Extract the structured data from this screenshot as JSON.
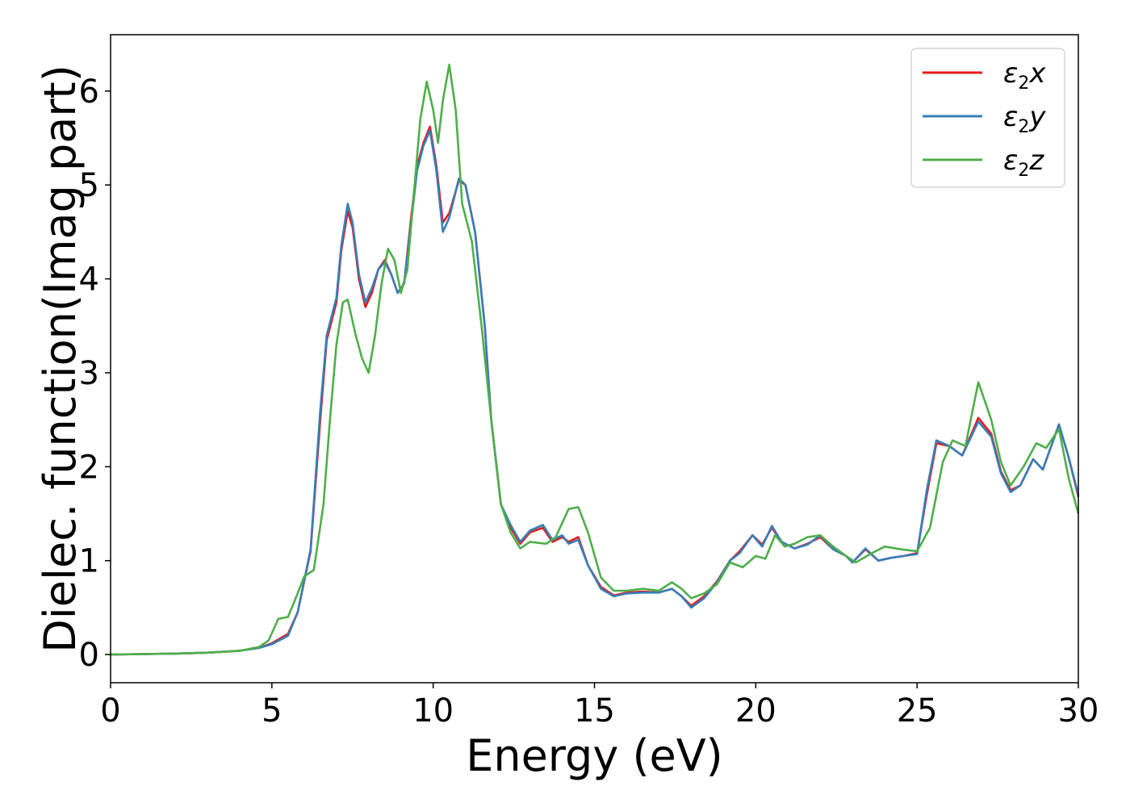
{
  "chart_data": {
    "type": "line",
    "title": "",
    "xlabel": "Energy (eV)",
    "ylabel": "Dielec. function(Imag part)",
    "xlim": [
      0,
      30
    ],
    "ylim": [
      -0.3,
      6.6
    ],
    "xticks": [
      0,
      5,
      10,
      15,
      20,
      25,
      30
    ],
    "yticks": [
      0,
      1,
      2,
      3,
      4,
      5,
      6
    ],
    "grid": false,
    "legend_position": "top-right",
    "series": [
      {
        "name": "ε2x",
        "legend_base": "ε",
        "legend_sub": "2",
        "legend_suffix": "x",
        "color": "#e41a1c",
        "points": [
          [
            0,
            0
          ],
          [
            1,
            0.005
          ],
          [
            2,
            0.01
          ],
          [
            3,
            0.02
          ],
          [
            4,
            0.04
          ],
          [
            4.6,
            0.07
          ],
          [
            5,
            0.12
          ],
          [
            5.5,
            0.22
          ],
          [
            5.8,
            0.45
          ],
          [
            6.2,
            1.1
          ],
          [
            6.5,
            2.5
          ],
          [
            6.7,
            3.35
          ],
          [
            7,
            3.75
          ],
          [
            7.15,
            4.3
          ],
          [
            7.35,
            4.72
          ],
          [
            7.5,
            4.55
          ],
          [
            7.7,
            4.0
          ],
          [
            7.9,
            3.7
          ],
          [
            8.1,
            3.85
          ],
          [
            8.3,
            4.1
          ],
          [
            8.5,
            4.2
          ],
          [
            8.7,
            4.05
          ],
          [
            8.9,
            3.85
          ],
          [
            9.1,
            3.95
          ],
          [
            9.3,
            4.6
          ],
          [
            9.5,
            5.2
          ],
          [
            9.7,
            5.45
          ],
          [
            9.9,
            5.62
          ],
          [
            10.1,
            5.2
          ],
          [
            10.3,
            4.6
          ],
          [
            10.5,
            4.7
          ],
          [
            10.8,
            5.05
          ],
          [
            11,
            5.0
          ],
          [
            11.3,
            4.5
          ],
          [
            11.6,
            3.5
          ],
          [
            11.8,
            2.5
          ],
          [
            12.1,
            1.6
          ],
          [
            12.4,
            1.35
          ],
          [
            12.7,
            1.18
          ],
          [
            13,
            1.3
          ],
          [
            13.4,
            1.35
          ],
          [
            13.7,
            1.2
          ],
          [
            14,
            1.25
          ],
          [
            14.2,
            1.2
          ],
          [
            14.5,
            1.25
          ],
          [
            14.8,
            0.95
          ],
          [
            15.2,
            0.72
          ],
          [
            15.6,
            0.63
          ],
          [
            16,
            0.66
          ],
          [
            16.5,
            0.67
          ],
          [
            17,
            0.66
          ],
          [
            17.4,
            0.7
          ],
          [
            17.7,
            0.62
          ],
          [
            18,
            0.52
          ],
          [
            18.4,
            0.62
          ],
          [
            18.8,
            0.78
          ],
          [
            19.2,
            1.0
          ],
          [
            19.5,
            1.1
          ],
          [
            19.9,
            1.27
          ],
          [
            20.2,
            1.17
          ],
          [
            20.5,
            1.35
          ],
          [
            20.8,
            1.2
          ],
          [
            21.2,
            1.13
          ],
          [
            21.6,
            1.18
          ],
          [
            22,
            1.25
          ],
          [
            22.4,
            1.12
          ],
          [
            22.8,
            1.05
          ],
          [
            23,
            0.98
          ],
          [
            23.4,
            1.12
          ],
          [
            23.8,
            1.0
          ],
          [
            24.2,
            1.03
          ],
          [
            24.6,
            1.05
          ],
          [
            25,
            1.08
          ],
          [
            25.3,
            1.7
          ],
          [
            25.6,
            2.25
          ],
          [
            26,
            2.22
          ],
          [
            26.4,
            2.12
          ],
          [
            26.9,
            2.52
          ],
          [
            27.3,
            2.35
          ],
          [
            27.6,
            1.95
          ],
          [
            27.9,
            1.75
          ],
          [
            28.2,
            1.8
          ],
          [
            28.6,
            2.08
          ],
          [
            28.9,
            1.97
          ],
          [
            29.4,
            2.45
          ],
          [
            29.7,
            2.1
          ],
          [
            30,
            1.68
          ]
        ]
      },
      {
        "name": "ε2y",
        "legend_base": "ε",
        "legend_sub": "2",
        "legend_suffix": "y",
        "color": "#377eb8",
        "points": [
          [
            0,
            0
          ],
          [
            1,
            0.005
          ],
          [
            2,
            0.01
          ],
          [
            3,
            0.02
          ],
          [
            4,
            0.04
          ],
          [
            4.6,
            0.07
          ],
          [
            5,
            0.11
          ],
          [
            5.5,
            0.2
          ],
          [
            5.8,
            0.45
          ],
          [
            6.2,
            1.12
          ],
          [
            6.5,
            2.6
          ],
          [
            6.7,
            3.4
          ],
          [
            7,
            3.8
          ],
          [
            7.15,
            4.35
          ],
          [
            7.35,
            4.8
          ],
          [
            7.5,
            4.6
          ],
          [
            7.7,
            4.05
          ],
          [
            7.9,
            3.75
          ],
          [
            8.1,
            3.9
          ],
          [
            8.3,
            4.1
          ],
          [
            8.5,
            4.18
          ],
          [
            8.7,
            4.05
          ],
          [
            8.9,
            3.85
          ],
          [
            9.1,
            3.95
          ],
          [
            9.3,
            4.55
          ],
          [
            9.5,
            5.15
          ],
          [
            9.7,
            5.42
          ],
          [
            9.9,
            5.58
          ],
          [
            10.1,
            5.15
          ],
          [
            10.3,
            4.5
          ],
          [
            10.5,
            4.65
          ],
          [
            10.8,
            5.07
          ],
          [
            11,
            5.0
          ],
          [
            11.3,
            4.5
          ],
          [
            11.6,
            3.5
          ],
          [
            11.8,
            2.5
          ],
          [
            12.1,
            1.6
          ],
          [
            12.4,
            1.38
          ],
          [
            12.7,
            1.2
          ],
          [
            13,
            1.32
          ],
          [
            13.4,
            1.38
          ],
          [
            13.7,
            1.22
          ],
          [
            14,
            1.27
          ],
          [
            14.2,
            1.18
          ],
          [
            14.5,
            1.22
          ],
          [
            14.8,
            0.95
          ],
          [
            15.2,
            0.7
          ],
          [
            15.6,
            0.62
          ],
          [
            16,
            0.65
          ],
          [
            16.5,
            0.66
          ],
          [
            17,
            0.66
          ],
          [
            17.4,
            0.7
          ],
          [
            17.7,
            0.62
          ],
          [
            18,
            0.5
          ],
          [
            18.4,
            0.6
          ],
          [
            18.8,
            0.77
          ],
          [
            19.2,
            1.0
          ],
          [
            19.5,
            1.08
          ],
          [
            19.9,
            1.27
          ],
          [
            20.2,
            1.15
          ],
          [
            20.5,
            1.37
          ],
          [
            20.8,
            1.2
          ],
          [
            21.2,
            1.13
          ],
          [
            21.6,
            1.17
          ],
          [
            22,
            1.27
          ],
          [
            22.4,
            1.12
          ],
          [
            22.8,
            1.05
          ],
          [
            23,
            0.98
          ],
          [
            23.4,
            1.13
          ],
          [
            23.8,
            1.0
          ],
          [
            24.2,
            1.03
          ],
          [
            24.6,
            1.05
          ],
          [
            25,
            1.07
          ],
          [
            25.3,
            1.75
          ],
          [
            25.6,
            2.28
          ],
          [
            26,
            2.22
          ],
          [
            26.4,
            2.12
          ],
          [
            26.9,
            2.48
          ],
          [
            27.3,
            2.32
          ],
          [
            27.6,
            1.93
          ],
          [
            27.9,
            1.73
          ],
          [
            28.2,
            1.8
          ],
          [
            28.6,
            2.08
          ],
          [
            28.9,
            1.97
          ],
          [
            29.4,
            2.45
          ],
          [
            29.7,
            2.1
          ],
          [
            30,
            1.7
          ]
        ]
      },
      {
        "name": "ε2z",
        "legend_base": "ε",
        "legend_sub": "2",
        "legend_suffix": "z",
        "color": "#4daf4a",
        "points": [
          [
            0,
            0
          ],
          [
            1,
            0.005
          ],
          [
            2,
            0.01
          ],
          [
            3,
            0.02
          ],
          [
            4,
            0.04
          ],
          [
            4.6,
            0.08
          ],
          [
            4.9,
            0.15
          ],
          [
            5.2,
            0.38
          ],
          [
            5.5,
            0.4
          ],
          [
            5.8,
            0.65
          ],
          [
            6,
            0.83
          ],
          [
            6.3,
            0.9
          ],
          [
            6.6,
            1.6
          ],
          [
            6.8,
            2.5
          ],
          [
            7,
            3.3
          ],
          [
            7.2,
            3.75
          ],
          [
            7.35,
            3.78
          ],
          [
            7.6,
            3.4
          ],
          [
            7.8,
            3.15
          ],
          [
            8,
            3.0
          ],
          [
            8.2,
            3.4
          ],
          [
            8.4,
            3.95
          ],
          [
            8.6,
            4.32
          ],
          [
            8.8,
            4.2
          ],
          [
            9,
            3.85
          ],
          [
            9.2,
            4.1
          ],
          [
            9.4,
            4.9
          ],
          [
            9.6,
            5.7
          ],
          [
            9.8,
            6.1
          ],
          [
            10,
            5.8
          ],
          [
            10.15,
            5.45
          ],
          [
            10.3,
            5.9
          ],
          [
            10.5,
            6.28
          ],
          [
            10.7,
            5.8
          ],
          [
            10.9,
            4.8
          ],
          [
            11.2,
            4.4
          ],
          [
            11.5,
            3.5
          ],
          [
            11.8,
            2.5
          ],
          [
            12.1,
            1.6
          ],
          [
            12.4,
            1.3
          ],
          [
            12.7,
            1.13
          ],
          [
            13,
            1.2
          ],
          [
            13.5,
            1.18
          ],
          [
            13.8,
            1.25
          ],
          [
            14.2,
            1.55
          ],
          [
            14.5,
            1.57
          ],
          [
            14.8,
            1.3
          ],
          [
            15.2,
            0.82
          ],
          [
            15.6,
            0.68
          ],
          [
            16,
            0.68
          ],
          [
            16.5,
            0.7
          ],
          [
            17,
            0.68
          ],
          [
            17.4,
            0.77
          ],
          [
            17.7,
            0.7
          ],
          [
            18,
            0.6
          ],
          [
            18.4,
            0.65
          ],
          [
            18.8,
            0.75
          ],
          [
            19.2,
            0.98
          ],
          [
            19.6,
            0.93
          ],
          [
            20,
            1.05
          ],
          [
            20.3,
            1.02
          ],
          [
            20.6,
            1.27
          ],
          [
            20.9,
            1.15
          ],
          [
            21.2,
            1.18
          ],
          [
            21.6,
            1.25
          ],
          [
            22,
            1.27
          ],
          [
            22.4,
            1.15
          ],
          [
            22.8,
            1.05
          ],
          [
            23.1,
            0.98
          ],
          [
            23.6,
            1.08
          ],
          [
            24,
            1.15
          ],
          [
            24.5,
            1.12
          ],
          [
            25,
            1.1
          ],
          [
            25.4,
            1.35
          ],
          [
            25.8,
            2.05
          ],
          [
            26.1,
            2.28
          ],
          [
            26.5,
            2.22
          ],
          [
            26.9,
            2.9
          ],
          [
            27.3,
            2.5
          ],
          [
            27.6,
            2.05
          ],
          [
            27.9,
            1.8
          ],
          [
            28.3,
            2.0
          ],
          [
            28.7,
            2.25
          ],
          [
            29,
            2.2
          ],
          [
            29.4,
            2.4
          ],
          [
            29.7,
            1.88
          ],
          [
            30,
            1.5
          ]
        ]
      }
    ]
  }
}
